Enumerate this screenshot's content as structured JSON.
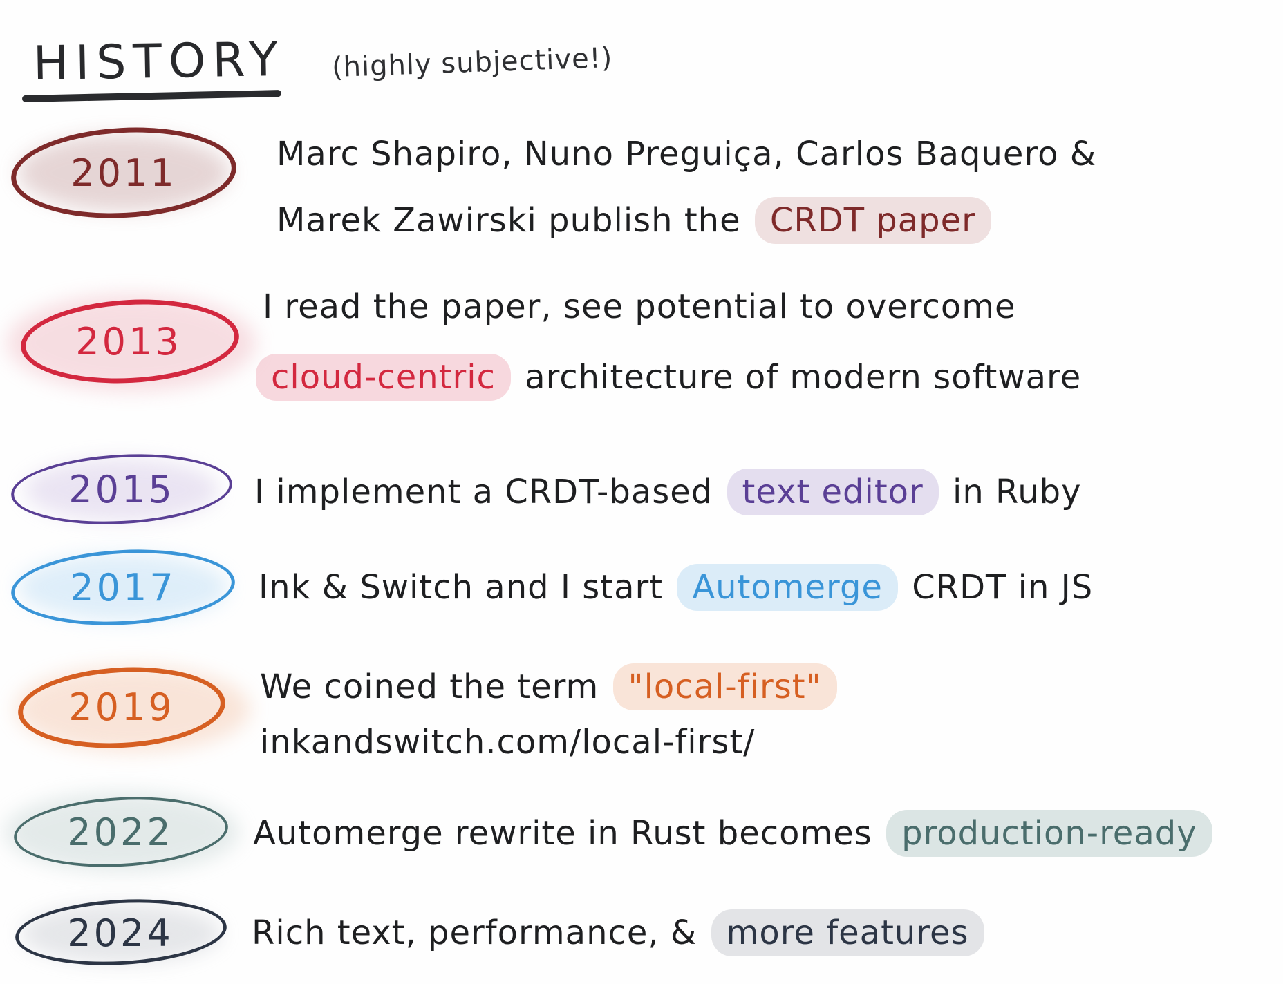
{
  "header": {
    "title": "HISTORY",
    "subtitle": "(highly subjective!)"
  },
  "colors": {
    "y2011": "#7e2a2a",
    "y2013": "#d3283f",
    "y2015": "#5a3f95",
    "y2017": "#3a95d8",
    "y2019": "#d65f22",
    "y2022": "#4a6d6c",
    "y2024": "#2c3545"
  },
  "entries": [
    {
      "year": "2011",
      "lines": [
        [
          "Marc Shapiro, Nuno Preguiça, Carlos Baquero &"
        ],
        [
          "Marek Zawirski publish the ",
          "CRDT paper"
        ]
      ]
    },
    {
      "year": "2013",
      "lines": [
        [
          "I read the paper, see potential to overcome"
        ],
        [
          "cloud-centric",
          " architecture of modern software"
        ]
      ]
    },
    {
      "year": "2015",
      "lines": [
        [
          "I implement a CRDT-based ",
          "text editor",
          " in Ruby"
        ]
      ]
    },
    {
      "year": "2017",
      "lines": [
        [
          "Ink & Switch and I start ",
          "Automerge",
          " CRDT in JS"
        ]
      ]
    },
    {
      "year": "2019",
      "lines": [
        [
          "We coined the term ",
          "\"local-first\""
        ],
        [
          "inkandswitch.com/local-first/"
        ]
      ]
    },
    {
      "year": "2022",
      "lines": [
        [
          "Automerge rewrite in Rust becomes ",
          "production-ready"
        ]
      ]
    },
    {
      "year": "2024",
      "lines": [
        [
          "Rich text, performance, & ",
          "more features"
        ]
      ]
    }
  ]
}
